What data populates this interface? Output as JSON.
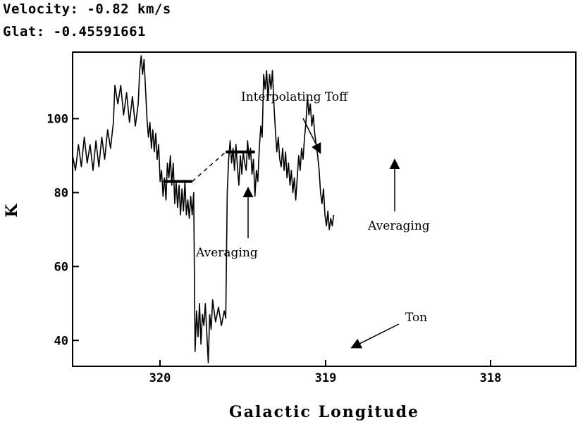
{
  "header": {
    "velocity": "Velocity: -0.82 km/s",
    "glat": "Glat: -0.45591661"
  },
  "chart_data": {
    "type": "line",
    "title": "",
    "xlabel": "Galactic Longitude",
    "ylabel": "K",
    "xlim": [
      320.95,
      317.5
    ],
    "ylim": [
      33,
      118
    ],
    "x_ticks": [
      "320",
      "319",
      "318"
    ],
    "y_ticks": [
      40,
      60,
      80,
      100
    ],
    "grid": false,
    "series": [
      {
        "points": [
          [
            320.95,
            90
          ],
          [
            320.93,
            86
          ],
          [
            320.91,
            93
          ],
          [
            320.89,
            87
          ],
          [
            320.87,
            95
          ],
          [
            320.85,
            88
          ],
          [
            320.83,
            93
          ],
          [
            320.81,
            86
          ],
          [
            320.79,
            94
          ],
          [
            320.77,
            87
          ],
          [
            320.75,
            95
          ],
          [
            320.73,
            89
          ],
          [
            320.71,
            97
          ],
          [
            320.69,
            92
          ],
          [
            320.67,
            99
          ],
          [
            320.66,
            109
          ],
          [
            320.64,
            104
          ],
          [
            320.62,
            109
          ],
          [
            320.6,
            101
          ],
          [
            320.58,
            107
          ],
          [
            320.56,
            99
          ],
          [
            320.54,
            106
          ],
          [
            320.52,
            98
          ],
          [
            320.5,
            104
          ],
          [
            320.49,
            113
          ],
          [
            320.48,
            117
          ],
          [
            320.47,
            112
          ],
          [
            320.46,
            116
          ],
          [
            320.45,
            108
          ],
          [
            320.44,
            100
          ],
          [
            320.43,
            95
          ],
          [
            320.42,
            99
          ],
          [
            320.41,
            92
          ],
          [
            320.4,
            97
          ],
          [
            320.39,
            91
          ],
          [
            320.38,
            96
          ],
          [
            320.37,
            89
          ],
          [
            320.36,
            93
          ],
          [
            320.35,
            83
          ],
          [
            320.34,
            86
          ],
          [
            320.33,
            79
          ],
          [
            320.32,
            84
          ],
          [
            320.31,
            78
          ],
          [
            320.3,
            88
          ],
          [
            320.29,
            84
          ],
          [
            320.28,
            90
          ],
          [
            320.27,
            82
          ],
          [
            320.26,
            88
          ],
          [
            320.25,
            77
          ],
          [
            320.24,
            83
          ],
          [
            320.23,
            76
          ],
          [
            320.22,
            82
          ],
          [
            320.21,
            74
          ],
          [
            320.2,
            81
          ],
          [
            320.19,
            75
          ],
          [
            320.18,
            83
          ],
          [
            320.17,
            74
          ],
          [
            320.16,
            78
          ],
          [
            320.15,
            73
          ],
          [
            320.14,
            79
          ],
          [
            320.13,
            74
          ],
          [
            320.12,
            80
          ],
          [
            320.11,
            37
          ],
          [
            320.1,
            48
          ],
          [
            320.09,
            41
          ],
          [
            320.08,
            50
          ],
          [
            320.07,
            39
          ],
          [
            320.06,
            47
          ],
          [
            320.05,
            44
          ],
          [
            320.04,
            50
          ],
          [
            320.03,
            42
          ],
          [
            320.02,
            34
          ],
          [
            320.01,
            47
          ],
          [
            320.0,
            43
          ],
          [
            319.99,
            51
          ],
          [
            319.97,
            45
          ],
          [
            319.95,
            49
          ],
          [
            319.93,
            44
          ],
          [
            319.91,
            48
          ],
          [
            319.9,
            46
          ],
          [
            319.89,
            80
          ],
          [
            319.88,
            89
          ],
          [
            319.87,
            94
          ],
          [
            319.86,
            88
          ],
          [
            319.85,
            92
          ],
          [
            319.84,
            86
          ],
          [
            319.83,
            93
          ],
          [
            319.82,
            87
          ],
          [
            319.81,
            82
          ],
          [
            319.8,
            90
          ],
          [
            319.79,
            85
          ],
          [
            319.78,
            91
          ],
          [
            319.77,
            88
          ],
          [
            319.76,
            86
          ],
          [
            319.75,
            94
          ],
          [
            319.74,
            89
          ],
          [
            319.73,
            92
          ],
          [
            319.72,
            85
          ],
          [
            319.71,
            89
          ],
          [
            319.7,
            79
          ],
          [
            319.69,
            86
          ],
          [
            319.68,
            83
          ],
          [
            319.67,
            92
          ],
          [
            319.66,
            98
          ],
          [
            319.65,
            95
          ],
          [
            319.64,
            112
          ],
          [
            319.63,
            108
          ],
          [
            319.62,
            113
          ],
          [
            319.61,
            105
          ],
          [
            319.6,
            112
          ],
          [
            319.59,
            108
          ],
          [
            319.58,
            113
          ],
          [
            319.57,
            104
          ],
          [
            319.56,
            97
          ],
          [
            319.55,
            91
          ],
          [
            319.54,
            95
          ],
          [
            319.53,
            89
          ],
          [
            319.52,
            87
          ],
          [
            319.51,
            92
          ],
          [
            319.5,
            86
          ],
          [
            319.49,
            91
          ],
          [
            319.48,
            84
          ],
          [
            319.47,
            88
          ],
          [
            319.46,
            82
          ],
          [
            319.45,
            86
          ],
          [
            319.44,
            80
          ],
          [
            319.43,
            84
          ],
          [
            319.42,
            78
          ],
          [
            319.41,
            84
          ],
          [
            319.4,
            90
          ],
          [
            319.39,
            86
          ],
          [
            319.38,
            92
          ],
          [
            319.37,
            89
          ],
          [
            319.36,
            95
          ],
          [
            319.35,
            99
          ],
          [
            319.34,
            106
          ],
          [
            319.33,
            101
          ],
          [
            319.32,
            104
          ],
          [
            319.31,
            98
          ],
          [
            319.3,
            101
          ],
          [
            319.29,
            96
          ],
          [
            319.28,
            93
          ],
          [
            319.27,
            90
          ],
          [
            319.26,
            86
          ],
          [
            319.25,
            80
          ],
          [
            319.24,
            77
          ],
          [
            319.23,
            81
          ],
          [
            319.22,
            74
          ],
          [
            319.21,
            71
          ],
          [
            319.2,
            75
          ],
          [
            319.19,
            70
          ],
          [
            319.18,
            73
          ],
          [
            319.17,
            71
          ],
          [
            319.16,
            74
          ]
        ]
      }
    ],
    "off_averages": [
      {
        "x_start": 320.33,
        "x_end": 320.13,
        "value": 83
      },
      {
        "x_start": 319.9,
        "x_end": 319.7,
        "value": 91
      }
    ],
    "interpolation": {
      "x_start": 320.13,
      "x_end": 319.9,
      "from": 83,
      "to": 91
    },
    "annotations": {
      "interpolating": "Interpolating Toff",
      "averaging_left": "Averaging",
      "averaging_right": "Averaging",
      "ton": "Ton"
    }
  }
}
